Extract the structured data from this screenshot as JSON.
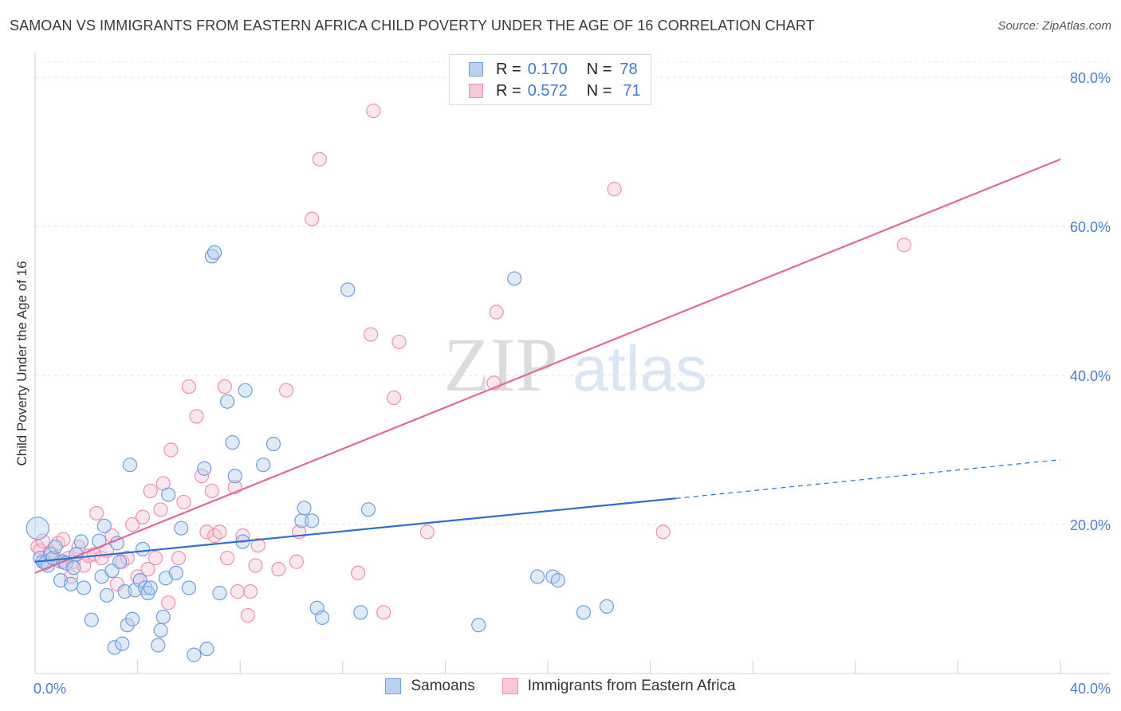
{
  "title": "SAMOAN VS IMMIGRANTS FROM EASTERN AFRICA CHILD POVERTY UNDER THE AGE OF 16 CORRELATION CHART",
  "source": "Source: ZipAtlas.com",
  "watermark": {
    "zip": "ZIP",
    "atlas": "atlas"
  },
  "legend": {
    "samoans": {
      "r_label": "R =",
      "r_value": "0.170",
      "n_label": "N =",
      "n_value": "78"
    },
    "eastern_africa": {
      "r_label": "R =",
      "r_value": "0.572",
      "n_label": "N =",
      "n_value": "71"
    }
  },
  "chart_data": {
    "type": "scatter",
    "title": "SAMOAN VS IMMIGRANTS FROM EASTERN AFRICA CHILD POVERTY UNDER THE AGE OF 16 CORRELATION CHART",
    "xlabel": "",
    "ylabel": "Child Poverty Under the Age of 16",
    "xlim": [
      0,
      40
    ],
    "ylim": [
      0,
      80
    ],
    "x_tick_labels": [
      {
        "value": 0,
        "label": "0.0%"
      },
      {
        "value": 40,
        "label": "40.0%"
      }
    ],
    "y_tick_labels": [
      {
        "value": 20,
        "label": "20.0%"
      },
      {
        "value": 40,
        "label": "40.0%"
      },
      {
        "value": 60,
        "label": "60.0%"
      },
      {
        "value": 80,
        "label": "80.0%"
      }
    ],
    "grid": true,
    "colors": {
      "samoans": "#6f9fde",
      "eastern_africa": "#ee91ad",
      "samoans_line": "#2d6fce",
      "eastern_africa_line": "#e06a92"
    },
    "series": [
      {
        "name": "Samoans",
        "r": 0.17,
        "n": 78,
        "trend": {
          "x0": 0,
          "y0": 15.0,
          "x1": 25.0,
          "y1": 23.5,
          "dashed_to_x": 40,
          "dashed_to_y": 28.7
        },
        "points": [
          [
            0.1,
            19.5
          ],
          [
            0.2,
            15.5
          ],
          [
            0.3,
            15.0
          ],
          [
            0.4,
            14.8
          ],
          [
            0.5,
            14.5
          ],
          [
            0.6,
            16.0
          ],
          [
            0.7,
            15.5
          ],
          [
            0.8,
            17.0
          ],
          [
            1.0,
            12.5
          ],
          [
            1.1,
            15.0
          ],
          [
            1.2,
            14.8
          ],
          [
            1.4,
            12.0
          ],
          [
            1.5,
            14.2
          ],
          [
            1.6,
            16.0
          ],
          [
            1.8,
            17.7
          ],
          [
            1.9,
            11.5
          ],
          [
            2.2,
            7.2
          ],
          [
            2.5,
            17.8
          ],
          [
            2.6,
            13.0
          ],
          [
            2.7,
            19.8
          ],
          [
            2.8,
            10.5
          ],
          [
            3.0,
            13.8
          ],
          [
            3.1,
            3.5
          ],
          [
            3.2,
            17.5
          ],
          [
            3.3,
            15.0
          ],
          [
            3.4,
            4.0
          ],
          [
            3.5,
            11.0
          ],
          [
            3.6,
            6.5
          ],
          [
            3.7,
            28.0
          ],
          [
            3.8,
            7.3
          ],
          [
            3.9,
            11.2
          ],
          [
            4.1,
            12.5
          ],
          [
            4.2,
            16.7
          ],
          [
            4.3,
            11.5
          ],
          [
            4.4,
            10.8
          ],
          [
            4.5,
            11.5
          ],
          [
            4.8,
            3.8
          ],
          [
            4.9,
            5.8
          ],
          [
            5.0,
            7.6
          ],
          [
            5.1,
            12.8
          ],
          [
            5.2,
            24.0
          ],
          [
            5.5,
            13.5
          ],
          [
            5.7,
            19.5
          ],
          [
            6.0,
            11.5
          ],
          [
            6.2,
            2.5
          ],
          [
            6.6,
            27.5
          ],
          [
            6.7,
            3.3
          ],
          [
            6.9,
            56.0
          ],
          [
            7.0,
            56.5
          ],
          [
            7.2,
            10.8
          ],
          [
            7.5,
            36.5
          ],
          [
            7.7,
            31.0
          ],
          [
            7.8,
            26.5
          ],
          [
            8.1,
            17.7
          ],
          [
            8.2,
            38.0
          ],
          [
            8.9,
            28.0
          ],
          [
            9.3,
            30.8
          ],
          [
            10.4,
            20.5
          ],
          [
            10.5,
            22.2
          ],
          [
            10.8,
            20.5
          ],
          [
            11.0,
            8.8
          ],
          [
            11.2,
            7.5
          ],
          [
            12.2,
            51.5
          ],
          [
            12.7,
            8.2
          ],
          [
            13.0,
            22.0
          ],
          [
            17.3,
            6.5
          ],
          [
            18.7,
            53.0
          ],
          [
            19.6,
            13.0
          ],
          [
            20.2,
            13.0
          ],
          [
            20.4,
            12.5
          ],
          [
            21.4,
            8.2
          ],
          [
            22.3,
            9.0
          ]
        ]
      },
      {
        "name": "Immigrants from Eastern Africa",
        "r": 0.572,
        "n": 71,
        "trend": {
          "x0": 0,
          "y0": 13.5,
          "x1": 40.0,
          "y1": 69.0
        },
        "points": [
          [
            0.1,
            17.0
          ],
          [
            0.2,
            16.5
          ],
          [
            0.3,
            17.8
          ],
          [
            0.4,
            15.0
          ],
          [
            0.6,
            16.2
          ],
          [
            0.8,
            15.5
          ],
          [
            0.9,
            17.5
          ],
          [
            1.0,
            15.0
          ],
          [
            1.1,
            18.0
          ],
          [
            1.3,
            15.5
          ],
          [
            1.4,
            13.0
          ],
          [
            1.5,
            15.0
          ],
          [
            1.7,
            17.0
          ],
          [
            1.9,
            14.5
          ],
          [
            2.1,
            15.8
          ],
          [
            2.3,
            16.0
          ],
          [
            2.4,
            21.5
          ],
          [
            2.6,
            15.5
          ],
          [
            2.8,
            16.5
          ],
          [
            3.0,
            18.5
          ],
          [
            3.2,
            12.0
          ],
          [
            3.4,
            15.0
          ],
          [
            3.6,
            15.5
          ],
          [
            3.8,
            20.0
          ],
          [
            4.0,
            13.0
          ],
          [
            4.2,
            21.0
          ],
          [
            4.4,
            14.0
          ],
          [
            4.5,
            24.5
          ],
          [
            4.7,
            15.5
          ],
          [
            4.9,
            22.0
          ],
          [
            5.0,
            25.5
          ],
          [
            5.2,
            9.5
          ],
          [
            5.3,
            30.0
          ],
          [
            5.6,
            15.5
          ],
          [
            5.8,
            23.0
          ],
          [
            6.0,
            38.5
          ],
          [
            6.3,
            34.5
          ],
          [
            6.5,
            26.5
          ],
          [
            6.7,
            19.0
          ],
          [
            6.9,
            24.5
          ],
          [
            7.0,
            18.5
          ],
          [
            7.2,
            19.0
          ],
          [
            7.4,
            38.5
          ],
          [
            7.5,
            15.5
          ],
          [
            7.8,
            25.0
          ],
          [
            7.9,
            11.0
          ],
          [
            8.1,
            18.5
          ],
          [
            8.3,
            7.8
          ],
          [
            8.4,
            11.0
          ],
          [
            8.6,
            14.5
          ],
          [
            8.7,
            17.2
          ],
          [
            9.5,
            14.0
          ],
          [
            9.8,
            38.0
          ],
          [
            10.2,
            15.0
          ],
          [
            10.3,
            19.0
          ],
          [
            10.8,
            61.0
          ],
          [
            11.1,
            69.0
          ],
          [
            12.6,
            13.5
          ],
          [
            13.1,
            45.5
          ],
          [
            13.2,
            75.5
          ],
          [
            13.6,
            8.2
          ],
          [
            14.0,
            37.0
          ],
          [
            14.2,
            44.5
          ],
          [
            15.3,
            19.0
          ],
          [
            17.9,
            39.0
          ],
          [
            18.0,
            48.5
          ],
          [
            22.6,
            65.0
          ],
          [
            24.5,
            19.0
          ],
          [
            33.9,
            57.5
          ]
        ]
      }
    ]
  }
}
